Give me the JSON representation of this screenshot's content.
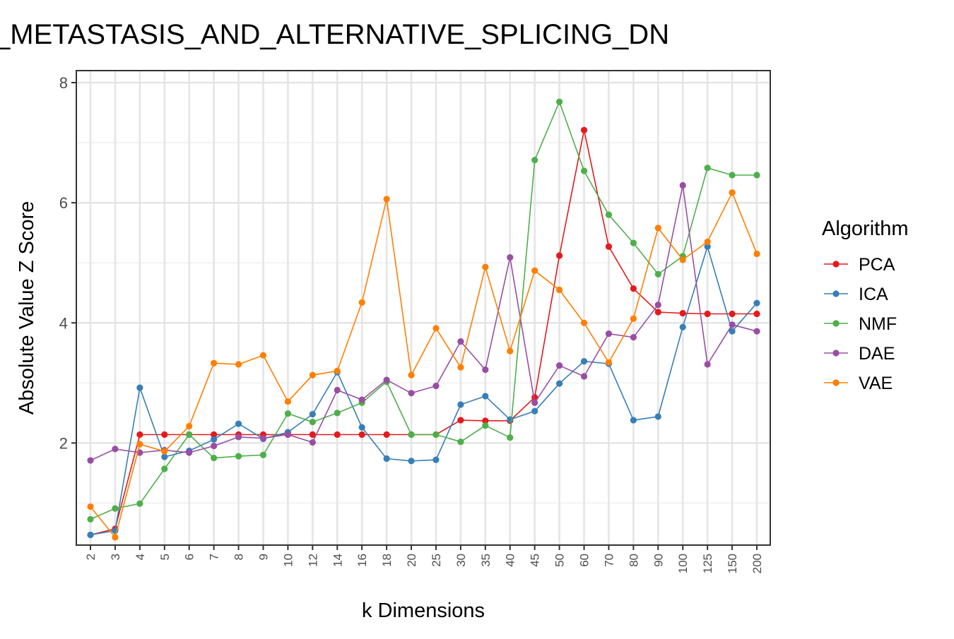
{
  "chart_data": {
    "type": "line",
    "title": "_METASTASIS_AND_ALTERNATIVE_SPLICING_DN",
    "xlabel": "k Dimensions",
    "ylabel": "Absolute Value Z Score",
    "categories": [
      "2",
      "3",
      "4",
      "5",
      "6",
      "7",
      "8",
      "9",
      "10",
      "12",
      "14",
      "16",
      "18",
      "20",
      "25",
      "30",
      "35",
      "40",
      "45",
      "50",
      "60",
      "70",
      "80",
      "90",
      "100",
      "125",
      "150",
      "200"
    ],
    "yticks": [
      2,
      4,
      6,
      8
    ],
    "ylim": [
      0.3,
      8.0
    ],
    "grid": true,
    "legend_title": "Algorithm",
    "legend_position": "right",
    "series": [
      {
        "name": "PCA",
        "color": "#e41a1c",
        "values": [
          0.47,
          0.57,
          2.14,
          2.14,
          2.14,
          2.14,
          2.14,
          2.14,
          2.14,
          2.14,
          2.14,
          2.14,
          2.14,
          2.14,
          2.14,
          2.38,
          2.37,
          2.37,
          2.76,
          5.12,
          7.21,
          5.27,
          4.57,
          4.18,
          4.16,
          4.15,
          4.15,
          4.15
        ]
      },
      {
        "name": "ICA",
        "color": "#377eb8",
        "values": [
          0.47,
          0.54,
          2.92,
          1.77,
          1.87,
          2.06,
          2.32,
          2.07,
          2.18,
          2.48,
          3.18,
          2.26,
          1.74,
          1.7,
          1.72,
          2.64,
          2.78,
          2.39,
          2.53,
          2.99,
          3.36,
          3.32,
          2.38,
          2.44,
          3.93,
          5.27,
          3.86,
          4.33
        ]
      },
      {
        "name": "NMF",
        "color": "#4daf4a",
        "values": [
          0.73,
          0.91,
          0.99,
          1.57,
          2.14,
          1.75,
          1.78,
          1.8,
          2.49,
          2.35,
          2.5,
          2.67,
          3.02,
          2.14,
          2.14,
          2.02,
          2.29,
          2.09,
          6.71,
          7.68,
          6.53,
          5.8,
          5.33,
          4.81,
          5.11,
          6.58,
          6.46,
          6.46
        ]
      },
      {
        "name": "DAE",
        "color": "#984ea3",
        "values": [
          1.71,
          1.9,
          1.84,
          1.88,
          1.84,
          1.95,
          2.1,
          2.08,
          2.14,
          2.01,
          2.88,
          2.72,
          3.05,
          2.83,
          2.95,
          3.69,
          3.22,
          5.09,
          2.67,
          3.29,
          3.11,
          3.82,
          3.76,
          4.3,
          6.29,
          3.31,
          3.97,
          3.86
        ]
      },
      {
        "name": "VAE",
        "color": "#ff7f00",
        "values": [
          0.94,
          0.43,
          1.98,
          1.86,
          2.28,
          3.33,
          3.31,
          3.46,
          2.69,
          3.13,
          3.2,
          4.34,
          6.06,
          3.13,
          3.91,
          3.26,
          4.93,
          3.53,
          4.87,
          4.55,
          4.0,
          3.34,
          4.07,
          5.58,
          5.05,
          5.35,
          6.17,
          5.15
        ]
      }
    ]
  }
}
